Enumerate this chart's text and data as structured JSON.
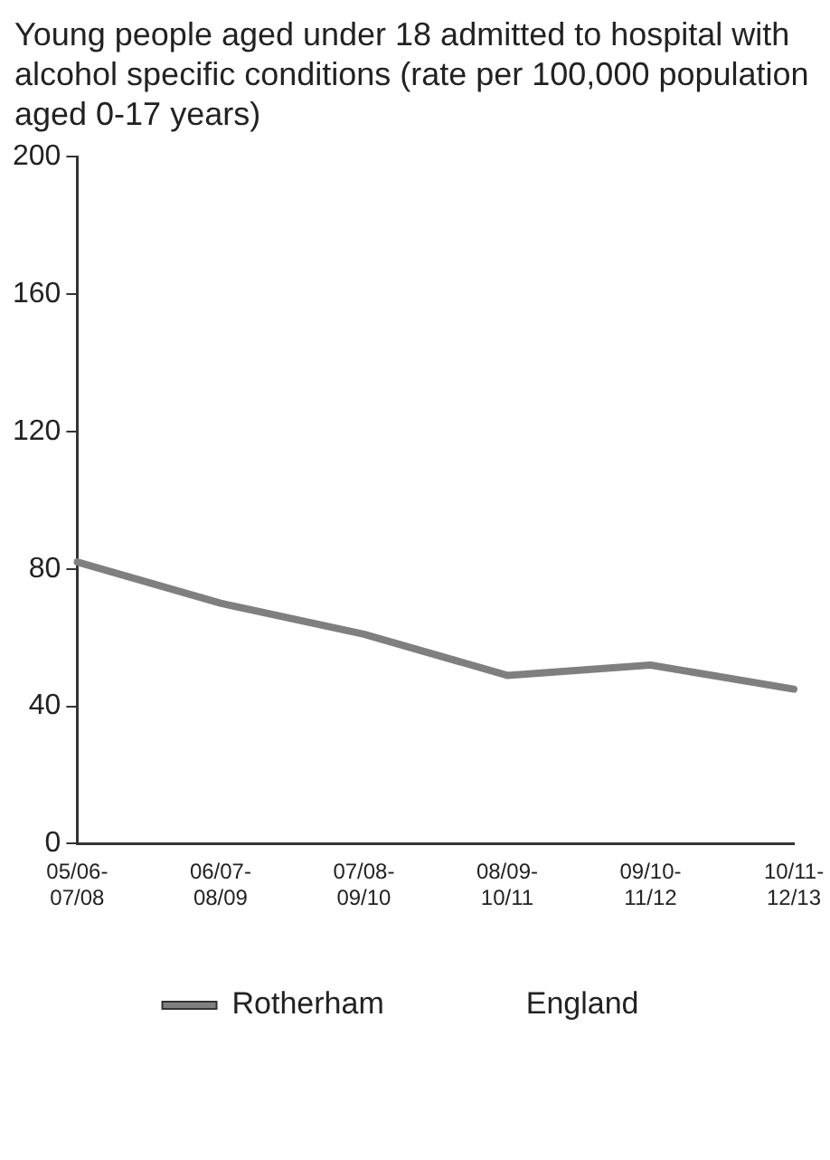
{
  "chart_data": {
    "type": "line",
    "title": "Young people aged under 18 admitted to hospital with alcohol specific conditions (rate per 100,000 population aged 0-17 years)",
    "categories": [
      "05/06-\n07/08",
      "06/07-\n08/09",
      "07/08-\n09/10",
      "08/09-\n10/11",
      "09/10-\n11/12",
      "10/11-\n12/13"
    ],
    "series": [
      {
        "name": "Rotherham",
        "color": "#7f7f7f",
        "values": [
          82,
          70,
          61,
          49,
          52,
          45
        ]
      },
      {
        "name": "England",
        "values": [
          null,
          null,
          null,
          null,
          null,
          null
        ]
      }
    ],
    "ylim": [
      0,
      200
    ],
    "yticks": [
      0,
      40,
      80,
      120,
      160,
      200
    ],
    "grid": false,
    "legend": "bottom",
    "marker": "none",
    "line_style": "solid"
  }
}
